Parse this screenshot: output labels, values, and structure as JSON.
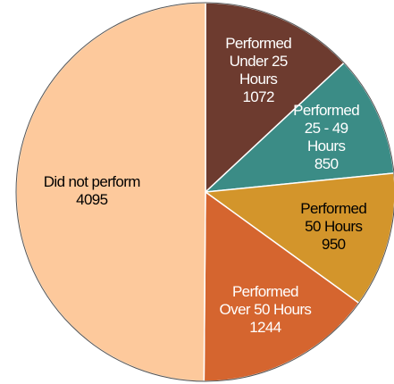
{
  "chart_data": {
    "type": "pie",
    "categories": [
      "Performed\nUnder 25\nHours",
      "Performed\n25 - 49 Hours",
      "Performed\n50 Hours",
      "Performed\nOver 50 Hours",
      "Did not perform"
    ],
    "values": [
      1072,
      850,
      950,
      1244,
      4095
    ],
    "colors": [
      "#6d3b2f",
      "#3b8c86",
      "#d3952b",
      "#d5652f",
      "#fdc99c"
    ]
  }
}
